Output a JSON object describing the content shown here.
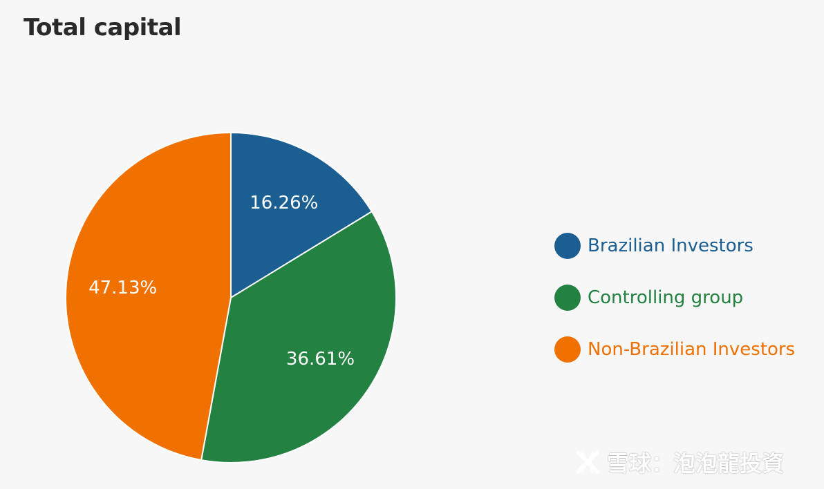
{
  "chart_data": {
    "type": "pie",
    "title": "Total capital",
    "slices": [
      {
        "label": "Brazilian Investors",
        "value": 16.26,
        "display": "16.26%",
        "color": "#1a5e92"
      },
      {
        "label": "Controlling group",
        "value": 36.61,
        "display": "36.61%",
        "color": "#238141"
      },
      {
        "label": "Non-Brazilian Investors",
        "value": 47.13,
        "display": "47.13%",
        "color": "#f07000"
      }
    ],
    "start_angle": "12 o'clock",
    "direction": "clockwise",
    "legend_position": "right"
  },
  "watermark": {
    "text": "雪球：泡泡龍投資",
    "logo_icon": "snowball-logo-icon"
  }
}
